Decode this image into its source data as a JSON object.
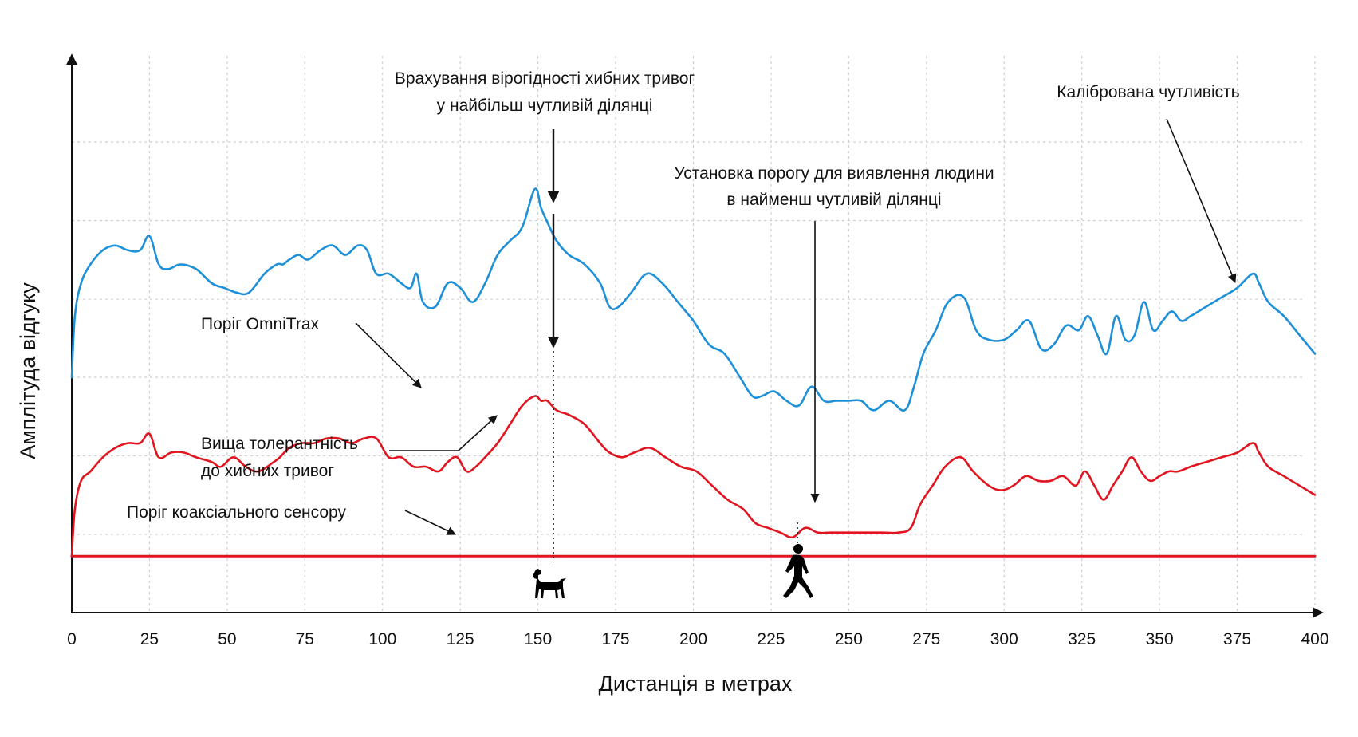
{
  "chart_data": {
    "type": "line",
    "xlabel": "Дистанція в метрах",
    "ylabel": "Амплітуда відгуку",
    "xlim": [
      0,
      400
    ],
    "ylim": [
      0,
      100
    ],
    "x_ticks": [
      0,
      25,
      50,
      75,
      100,
      125,
      150,
      175,
      200,
      225,
      250,
      275,
      300,
      325,
      350,
      375,
      400
    ],
    "grid": true,
    "series": [
      {
        "color": "#1e90d8",
        "x": [
          0,
          1,
          3,
          6,
          10,
          14,
          18,
          22,
          25,
          28,
          31,
          35,
          40,
          45,
          49,
          53,
          57,
          62,
          66,
          68,
          70,
          73,
          76,
          80,
          84,
          88,
          92,
          95,
          98,
          102,
          106,
          109,
          111,
          113,
          117,
          121,
          125,
          129,
          133,
          137,
          141,
          145,
          149,
          151,
          153,
          156,
          160,
          165,
          170,
          173,
          176,
          180,
          185,
          190,
          195,
          200,
          205,
          210,
          215,
          219,
          222,
          226,
          230,
          234,
          238,
          242,
          246,
          250,
          254,
          258,
          263,
          268,
          271,
          274,
          278,
          282,
          287,
          291,
          295,
          300,
          304,
          308,
          312,
          316,
          320,
          324,
          327,
          330,
          333,
          336,
          339,
          342,
          345,
          348,
          351,
          354,
          357,
          360,
          365,
          370,
          375,
          380,
          382,
          385,
          390,
          395,
          400
        ],
        "y": [
          50,
          63,
          70,
          74,
          77,
          78,
          77,
          77,
          80,
          74,
          73,
          74,
          73,
          70,
          69,
          68,
          68,
          72,
          74,
          74,
          75,
          76,
          75,
          77,
          78,
          76,
          78,
          77,
          72,
          72,
          70,
          69,
          72,
          66,
          65,
          70,
          69,
          66,
          70,
          76,
          79,
          82,
          90,
          86,
          83,
          79,
          76,
          74,
          70,
          65,
          65,
          68,
          72,
          70,
          66,
          62,
          57,
          55,
          50,
          46,
          46,
          47,
          45,
          44,
          48,
          45,
          45,
          45,
          45,
          43,
          45,
          43,
          48,
          55,
          60,
          66,
          67,
          60,
          58,
          58,
          60,
          62,
          56,
          57,
          61,
          60,
          63,
          59,
          55,
          63,
          58,
          59,
          66,
          60,
          62,
          64,
          62,
          63,
          65,
          67,
          69,
          72,
          70,
          66,
          63,
          59,
          55
        ]
      },
      {
        "color": "#e0151f",
        "x": [
          0,
          1,
          3,
          6,
          10,
          14,
          18,
          22,
          25,
          28,
          32,
          36,
          40,
          45,
          48,
          52,
          56,
          60,
          65,
          67,
          70,
          74,
          78,
          82,
          86,
          90,
          94,
          98,
          102,
          106,
          110,
          114,
          118,
          121,
          124,
          127,
          130,
          133,
          137,
          141,
          145,
          149,
          151,
          153,
          156,
          160,
          165,
          170,
          173,
          177,
          181,
          186,
          191,
          196,
          201,
          206,
          211,
          216,
          220,
          224,
          228,
          232,
          236,
          240,
          244,
          248,
          252,
          256,
          261,
          266,
          270,
          273,
          277,
          281,
          286,
          290,
          295,
          299,
          303,
          307,
          311,
          315,
          319,
          323,
          326,
          329,
          332,
          335,
          338,
          341,
          344,
          347,
          350,
          353,
          356,
          360,
          365,
          370,
          375,
          380,
          382,
          385,
          390,
          395,
          400
        ],
        "y": [
          12,
          22,
          28,
          30,
          33,
          35,
          36,
          36,
          38,
          33,
          34,
          34,
          33,
          32,
          31,
          33,
          31,
          30,
          32,
          33,
          35,
          36,
          36,
          37,
          37,
          36,
          37,
          37,
          33,
          33,
          31,
          31,
          30,
          32,
          33,
          30,
          31,
          33,
          36,
          40,
          44,
          46,
          45,
          45,
          43,
          42,
          40,
          36,
          34,
          33,
          34,
          35,
          33,
          31,
          30,
          27,
          24,
          22,
          19,
          18,
          17,
          16,
          18,
          17,
          17,
          17,
          17,
          17,
          17,
          17,
          18,
          23,
          27,
          31,
          33,
          30,
          27,
          26,
          27,
          29,
          28,
          28,
          29,
          27,
          30,
          27,
          24,
          27,
          30,
          33,
          30,
          28,
          29,
          30,
          30,
          31,
          32,
          33,
          34,
          36,
          34,
          31,
          29,
          27,
          25
        ]
      },
      {
        "color": "#e0151f",
        "x": [
          0,
          400
        ],
        "y": [
          12,
          12
        ]
      }
    ],
    "annotations": [
      {
        "lines": [
          "Врахування вірогідності хибних тривог",
          "у найбільш чутливій ділянці"
        ]
      },
      {
        "lines": [
          "Калібрована чутливість"
        ]
      },
      {
        "lines": [
          "Установка порогу для виявлення людини",
          "в найменш чутливій ділянці"
        ]
      },
      {
        "lines": [
          "Поріг OmniTrax"
        ]
      },
      {
        "lines": [
          "Вища толерантність",
          "до хибних тривог"
        ]
      },
      {
        "lines": [
          "Поріг коаксіального сенсору"
        ]
      }
    ]
  },
  "icons": {
    "dog": "dog-silhouette-icon",
    "person": "walking-person-silhouette-icon"
  }
}
